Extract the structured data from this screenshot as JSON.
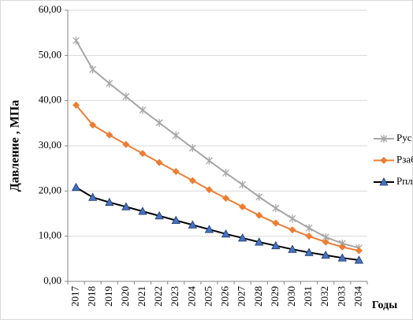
{
  "chart_data": {
    "type": "line",
    "y_label": "Давление , МПа",
    "x_label": "Годы",
    "categories": [
      "2017",
      "2018",
      "2019",
      "2020",
      "2021",
      "2022",
      "2023",
      "2024",
      "2025",
      "2026",
      "2027",
      "2028",
      "2029",
      "2030",
      "2031",
      "2032",
      "2033",
      "2034"
    ],
    "series": [
      {
        "name": "Рус",
        "color": "#a6a6a6",
        "marker": "star",
        "marker_color": "#a6a6a6",
        "values": [
          53.3,
          46.9,
          43.8,
          40.9,
          37.9,
          35.1,
          32.3,
          29.5,
          26.7,
          24.0,
          21.4,
          18.7,
          16.2,
          13.9,
          11.8,
          9.8,
          8.4,
          7.4
        ]
      },
      {
        "name": "Рзаб",
        "color": "#ed7d31",
        "marker": "diamond",
        "marker_color": "#ed7d31",
        "values": [
          39.0,
          34.6,
          32.4,
          30.3,
          28.3,
          26.3,
          24.3,
          22.3,
          20.3,
          18.4,
          16.5,
          14.6,
          12.9,
          11.4,
          10.0,
          8.7,
          7.6,
          6.8
        ]
      },
      {
        "name": "Рплt",
        "color": "#000000",
        "marker": "triangle",
        "marker_color": "#4472c4",
        "values": [
          20.8,
          18.6,
          17.5,
          16.5,
          15.5,
          14.5,
          13.5,
          12.5,
          11.5,
          10.5,
          9.6,
          8.7,
          7.9,
          7.1,
          6.4,
          5.8,
          5.2,
          4.7
        ]
      }
    ],
    "ylim": [
      0,
      60
    ],
    "yticks": [
      {
        "value": 0,
        "label": "0,00"
      },
      {
        "value": 10,
        "label": "10,00"
      },
      {
        "value": 20,
        "label": "20,00"
      },
      {
        "value": 30,
        "label": "30,00"
      },
      {
        "value": 40,
        "label": "40,00"
      },
      {
        "value": 50,
        "label": "50,00"
      },
      {
        "value": 60,
        "label": "60,00"
      }
    ],
    "grid": true,
    "legend": "right"
  }
}
